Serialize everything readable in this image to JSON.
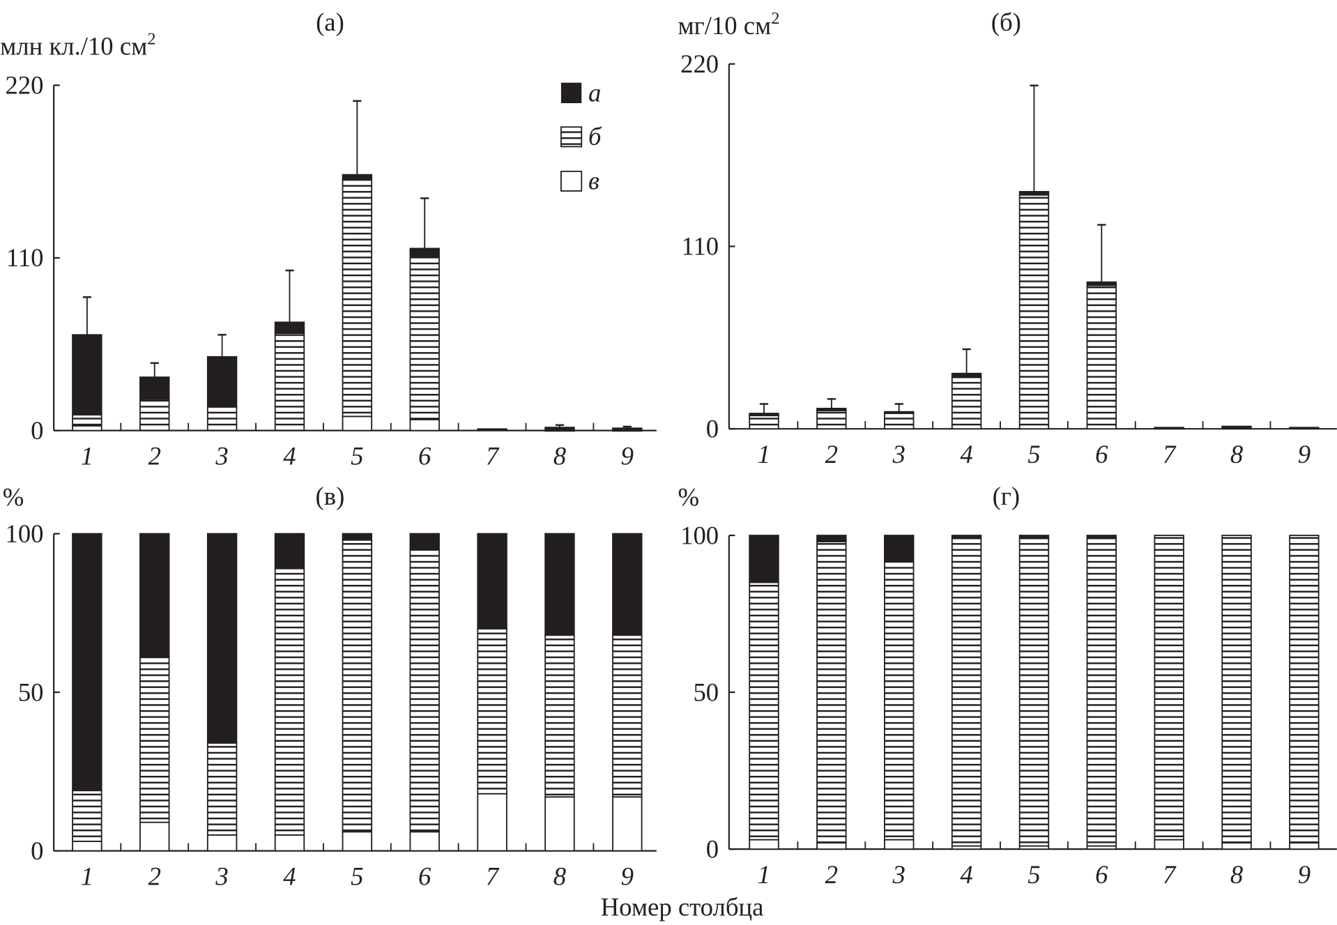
{
  "chart_data": [
    {
      "type": "bar",
      "stacked": true,
      "title": "(а)",
      "ylabel": "млн кл./10 см²",
      "xlabel": "Номер столбца",
      "categories": [
        "1",
        "2",
        "3",
        "4",
        "5",
        "6",
        "7",
        "8",
        "9"
      ],
      "yticks": [
        "0",
        "110",
        "220"
      ],
      "ylim": [
        0,
        220
      ],
      "series": [
        {
          "name": "в",
          "fill": "white",
          "values": [
            3,
            0,
            0,
            0,
            9,
            7,
            0,
            0,
            0
          ]
        },
        {
          "name": "б",
          "fill": "hatch",
          "values": [
            7,
            20,
            15,
            62,
            151,
            104,
            0,
            0.5,
            0.5
          ]
        },
        {
          "name": "а",
          "fill": "black",
          "values": [
            51,
            14,
            32,
            7,
            3,
            5,
            1,
            1.5,
            1
          ]
        }
      ],
      "error_top": [
        85,
        43,
        61,
        102,
        210,
        148,
        null,
        3.5,
        2.5
      ],
      "legend": [
        "а",
        "б",
        "в"
      ],
      "legend_position": "top-right"
    },
    {
      "type": "bar",
      "stacked": true,
      "title": "(б)",
      "ylabel": "мг/10 см²",
      "categories": [
        "1",
        "2",
        "3",
        "4",
        "5",
        "6",
        "7",
        "8",
        "9"
      ],
      "yticks": [
        "0",
        "110",
        "220"
      ],
      "ylim": [
        0,
        220
      ],
      "series": [
        {
          "name": "в",
          "fill": "white",
          "values": [
            0,
            0,
            0,
            0,
            0,
            0,
            0,
            0,
            0
          ]
        },
        {
          "name": "б",
          "fill": "hatch",
          "values": [
            8,
            11,
            9.3,
            31,
            141,
            86.5,
            0,
            0,
            0
          ]
        },
        {
          "name": "а",
          "fill": "black",
          "values": [
            1.3,
            1.3,
            1,
            2.4,
            2,
            2,
            0.8,
            1.5,
            0.8
          ]
        }
      ],
      "error_top": [
        15,
        18,
        15,
        48,
        207,
        123,
        null,
        null,
        null
      ]
    },
    {
      "type": "bar",
      "stacked": true,
      "title": "(в)",
      "ylabel": "%",
      "categories": [
        "1",
        "2",
        "3",
        "4",
        "5",
        "6",
        "7",
        "8",
        "9"
      ],
      "yticks": [
        "0",
        "50",
        "100"
      ],
      "ylim": [
        0,
        100
      ],
      "series": [
        {
          "name": "в",
          "fill": "white",
          "values": [
            3,
            9,
            5,
            5,
            6,
            6,
            18,
            17,
            17
          ]
        },
        {
          "name": "б",
          "fill": "hatch",
          "values": [
            16,
            52,
            29,
            84,
            92,
            89,
            52,
            51,
            51
          ]
        },
        {
          "name": "а",
          "fill": "black",
          "values": [
            81,
            39,
            66,
            11,
            2,
            5,
            30,
            32,
            32
          ]
        }
      ]
    },
    {
      "type": "bar",
      "stacked": true,
      "title": "(г)",
      "ylabel": "%",
      "categories": [
        "1",
        "2",
        "3",
        "4",
        "5",
        "6",
        "7",
        "8",
        "9"
      ],
      "yticks": [
        "0",
        "50",
        "100"
      ],
      "ylim": [
        0,
        100
      ],
      "series": [
        {
          "name": "в",
          "fill": "white",
          "values": [
            3,
            2,
            3,
            1,
            1,
            1,
            3,
            2,
            2
          ]
        },
        {
          "name": "б",
          "fill": "hatch",
          "values": [
            82,
            96,
            89,
            98,
            98,
            98,
            97,
            98,
            98
          ]
        },
        {
          "name": "а",
          "fill": "black",
          "values": [
            15,
            2,
            8,
            1,
            1,
            1,
            0,
            0,
            0
          ]
        }
      ]
    }
  ],
  "xlabel": "Номер столбца",
  "colors": {
    "ink": "#231f20",
    "paper": "#ffffff"
  }
}
